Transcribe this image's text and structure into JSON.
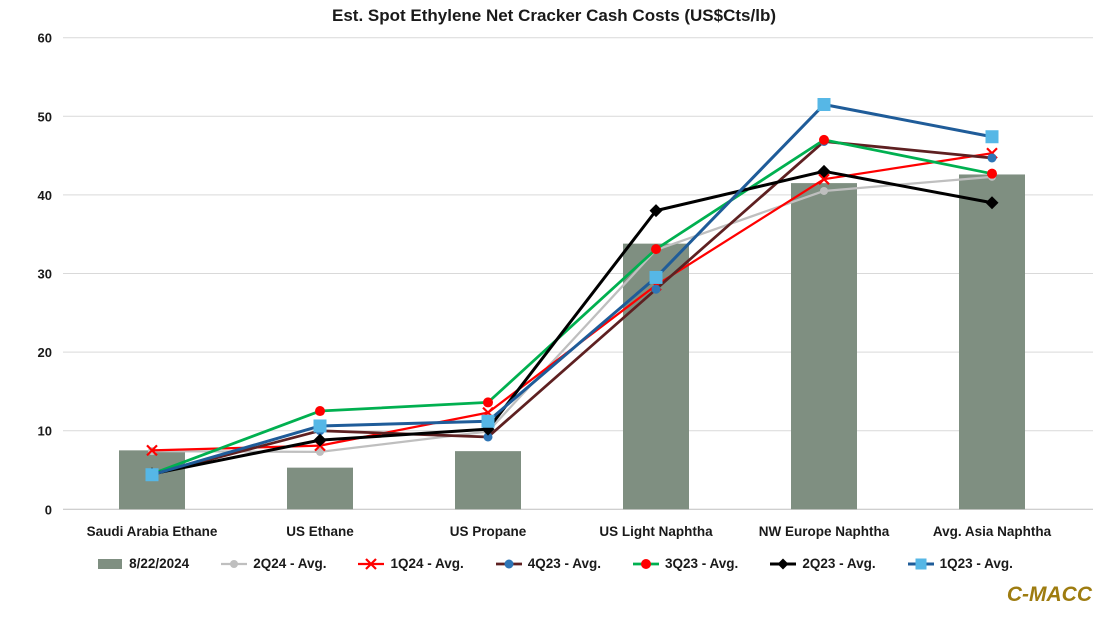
{
  "chart_data": {
    "type": "bar+line combo",
    "title": "Est. Spot Ethylene Net Cracker Cash Costs (US$Cts/lb)",
    "categories": [
      "Saudi Arabia Ethane",
      "US Ethane",
      "US Propane",
      "US Light Naphtha",
      "NW Europe Naphtha",
      "Avg. Asia Naphtha"
    ],
    "bar_series": {
      "name": "8/22/2024",
      "color": "#7f8f81",
      "values": [
        7.5,
        5.3,
        7.4,
        33.8,
        41.5,
        42.6
      ]
    },
    "line_series": [
      {
        "name": "2Q24 - Avg.",
        "line_color": "#bfbfbf",
        "line_width": 2.25,
        "marker": "circle",
        "marker_color": "#bfbfbf",
        "marker_size": 4,
        "values": [
          7.4,
          7.3,
          9.9,
          33.0,
          40.5,
          42.3
        ]
      },
      {
        "name": "1Q24 - Avg.",
        "line_color": "#ff0000",
        "line_width": 2.25,
        "marker": "x",
        "marker_color": "#ff0000",
        "marker_size": 5,
        "values": [
          7.5,
          8.1,
          12.3,
          28.5,
          42.0,
          45.3
        ]
      },
      {
        "name": "4Q23 - Avg.",
        "line_color": "#5e2021",
        "line_width": 2.75,
        "marker": "circle",
        "marker_color": "#2e75b6",
        "marker_size": 4.5,
        "values": [
          4.4,
          10.0,
          9.2,
          28.0,
          46.8,
          44.7
        ]
      },
      {
        "name": "3Q23 - Avg.",
        "line_color": "#00b050",
        "line_width": 2.75,
        "marker": "circle",
        "marker_color": "#ff0000",
        "marker_size": 5,
        "values": [
          4.5,
          12.5,
          13.6,
          33.1,
          47.0,
          42.7
        ]
      },
      {
        "name": "2Q23 - Avg.",
        "line_color": "#000000",
        "line_width": 3,
        "marker": "diamond",
        "marker_color": "#000000",
        "marker_size": 6.5,
        "values": [
          4.5,
          8.8,
          10.2,
          38.0,
          43.0,
          39.0
        ]
      },
      {
        "name": "1Q23 - Avg.",
        "line_color": "#1f5c99",
        "line_width": 3,
        "marker": "square",
        "marker_color": "#56b7e6",
        "marker_size": 6.5,
        "values": [
          4.4,
          10.6,
          11.2,
          29.5,
          51.5,
          47.4
        ]
      }
    ],
    "y_axis": {
      "min": 0,
      "max": 60,
      "step": 10,
      "tick_labels": [
        "0",
        "10",
        "20",
        "30",
        "40",
        "50",
        "60"
      ]
    },
    "xlabel": "",
    "ylabel": "",
    "grid": true,
    "gridline_color": "#d9d9d9",
    "legend_position": "bottom"
  },
  "branding": {
    "watermark": "C-MACC",
    "color": "#9e7c10"
  }
}
